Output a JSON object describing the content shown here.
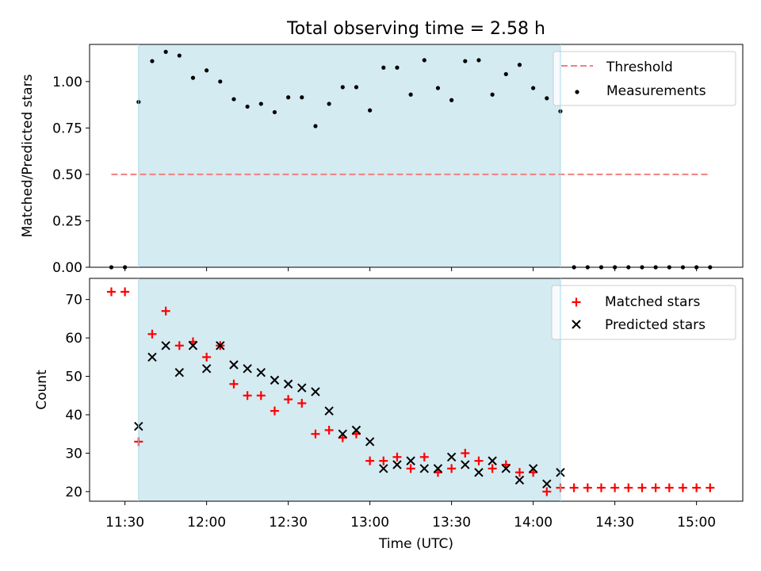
{
  "chart_data": {
    "title": "Total observing time = 2.58 h",
    "xlabel": "Time (UTC)",
    "x_ticks": [
      "11:30",
      "12:00",
      "12:30",
      "13:00",
      "13:30",
      "14:00",
      "14:30",
      "15:00"
    ],
    "xlim": [
      "11:17",
      "15:17"
    ],
    "shaded_interval": [
      "11:35",
      "14:10"
    ],
    "shade_color": "#d4ebf2",
    "panels": [
      {
        "type": "scatter",
        "ylabel": "Matched/Predicted stars",
        "ylim": [
          0,
          1.2
        ],
        "y_ticks": [
          "0.00",
          "0.25",
          "0.50",
          "0.75",
          "1.00"
        ],
        "legend_position": "top-right",
        "threshold": {
          "name": "Threshold",
          "value": 0.5,
          "x_range": [
            "11:25",
            "15:05"
          ],
          "color": "#f08080"
        },
        "series": [
          {
            "name": "Measurements",
            "marker": "dot",
            "color": "#000000",
            "x": [
              "11:25",
              "11:30",
              "11:35",
              "11:40",
              "11:45",
              "11:50",
              "11:55",
              "12:00",
              "12:05",
              "12:10",
              "12:15",
              "12:20",
              "12:25",
              "12:30",
              "12:35",
              "12:40",
              "12:45",
              "12:50",
              "12:55",
              "13:00",
              "13:05",
              "13:10",
              "13:15",
              "13:20",
              "13:25",
              "13:30",
              "13:35",
              "13:40",
              "13:45",
              "13:50",
              "13:55",
              "14:00",
              "14:05",
              "14:10",
              "14:15",
              "14:20",
              "14:25",
              "14:30",
              "14:35",
              "14:40",
              "14:45",
              "14:50",
              "14:55",
              "15:00",
              "15:05"
            ],
            "y": [
              0.0,
              0.0,
              0.89,
              1.11,
              1.16,
              1.14,
              1.02,
              1.06,
              1.0,
              0.905,
              0.865,
              0.88,
              0.835,
              0.915,
              0.915,
              0.76,
              0.88,
              0.97,
              0.97,
              0.845,
              1.075,
              1.075,
              0.93,
              1.115,
              0.965,
              0.9,
              1.11,
              1.115,
              0.93,
              1.04,
              1.09,
              0.965,
              0.91,
              0.84,
              0.0,
              0.0,
              0.0,
              0.0,
              0.0,
              0.0,
              0.0,
              0.0,
              0.0,
              0.0,
              0.0
            ]
          }
        ]
      },
      {
        "type": "scatter",
        "ylabel": "Count",
        "ylim": [
          17.5,
          75.5
        ],
        "y_ticks": [
          "20",
          "30",
          "40",
          "50",
          "60",
          "70"
        ],
        "legend_position": "top-right",
        "series": [
          {
            "name": "Matched stars",
            "marker": "plus",
            "color": "#ff0000",
            "x": [
              "11:25",
              "11:30",
              "11:35",
              "11:40",
              "11:45",
              "11:50",
              "11:55",
              "12:00",
              "12:05",
              "12:10",
              "12:15",
              "12:20",
              "12:25",
              "12:30",
              "12:35",
              "12:40",
              "12:45",
              "12:50",
              "12:55",
              "13:00",
              "13:05",
              "13:10",
              "13:15",
              "13:20",
              "13:25",
              "13:30",
              "13:35",
              "13:40",
              "13:45",
              "13:50",
              "13:55",
              "14:00",
              "14:05",
              "14:10",
              "14:15",
              "14:20",
              "14:25",
              "14:30",
              "14:35",
              "14:40",
              "14:45",
              "14:50",
              "14:55",
              "15:00",
              "15:05"
            ],
            "y": [
              72,
              72,
              33,
              61,
              67,
              58,
              59,
              55,
              58,
              48,
              45,
              45,
              41,
              44,
              43,
              35,
              36,
              34,
              35,
              28,
              28,
              29,
              26,
              29,
              25,
              26,
              30,
              28,
              26,
              27,
              25,
              25,
              20,
              21,
              21,
              21,
              21,
              21,
              21,
              21,
              21,
              21,
              21,
              21,
              21
            ]
          },
          {
            "name": "Predicted stars",
            "marker": "x",
            "color": "#000000",
            "x": [
              "11:35",
              "11:40",
              "11:45",
              "11:50",
              "11:55",
              "12:00",
              "12:05",
              "12:10",
              "12:15",
              "12:20",
              "12:25",
              "12:30",
              "12:35",
              "12:40",
              "12:45",
              "12:50",
              "12:55",
              "13:00",
              "13:05",
              "13:10",
              "13:15",
              "13:20",
              "13:25",
              "13:30",
              "13:35",
              "13:40",
              "13:45",
              "13:50",
              "13:55",
              "14:00",
              "14:05",
              "14:10"
            ],
            "y": [
              37,
              55,
              58,
              51,
              58,
              52,
              58,
              53,
              52,
              51,
              49,
              48,
              47,
              46,
              41,
              35,
              36,
              33,
              26,
              27,
              28,
              26,
              26,
              29,
              27,
              25,
              28,
              26,
              23,
              26,
              22,
              25
            ]
          }
        ]
      }
    ]
  }
}
